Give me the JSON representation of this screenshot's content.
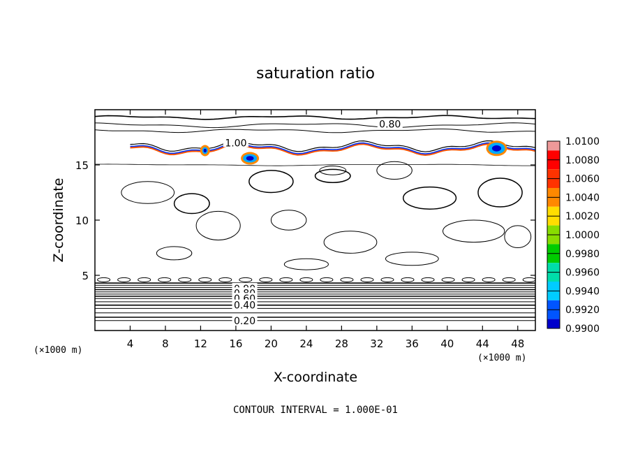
{
  "chart_data": {
    "type": "contour",
    "title": "saturation ratio",
    "xlabel": "X-coordinate",
    "ylabel": "Z-coordinate",
    "x_unit_left": "(×1000 m)",
    "x_unit_right": "(×1000 m)",
    "footer": "CONTOUR INTERVAL = 1.000E-01",
    "xlim": [
      0,
      50
    ],
    "ylim": [
      0,
      20
    ],
    "xticks": [
      4,
      8,
      12,
      16,
      20,
      24,
      28,
      32,
      36,
      40,
      44,
      48
    ],
    "yticks": [
      5,
      10,
      15
    ],
    "contour_interval": 0.1,
    "contour_labels": [
      {
        "text": "0.80",
        "x": 33.5,
        "z": 18.7
      },
      {
        "text": "1.00",
        "x": 16.0,
        "z": 17.0
      },
      {
        "text": "0.90",
        "x": 17.0,
        "z": 3.8
      },
      {
        "text": "0.80",
        "x": 17.0,
        "z": 3.4
      },
      {
        "text": "0.60",
        "x": 17.0,
        "z": 2.9
      },
      {
        "text": "0.40",
        "x": 17.0,
        "z": 2.3
      },
      {
        "text": "0.20",
        "x": 17.0,
        "z": 0.9
      }
    ],
    "colorbar": {
      "levels": [
        "1.0100",
        "1.0080",
        "1.0060",
        "1.0040",
        "1.0020",
        "1.0000",
        "0.9980",
        "0.9960",
        "0.9940",
        "0.9920",
        "0.9900"
      ],
      "colors": [
        "#ee9999",
        "#ff0000",
        "#ff3300",
        "#ff8800",
        "#ffdd00",
        "#88dd00",
        "#00cc00",
        "#00ddaa",
        "#00ccff",
        "#0055ff",
        "#0000cc",
        "#660099"
      ]
    }
  }
}
